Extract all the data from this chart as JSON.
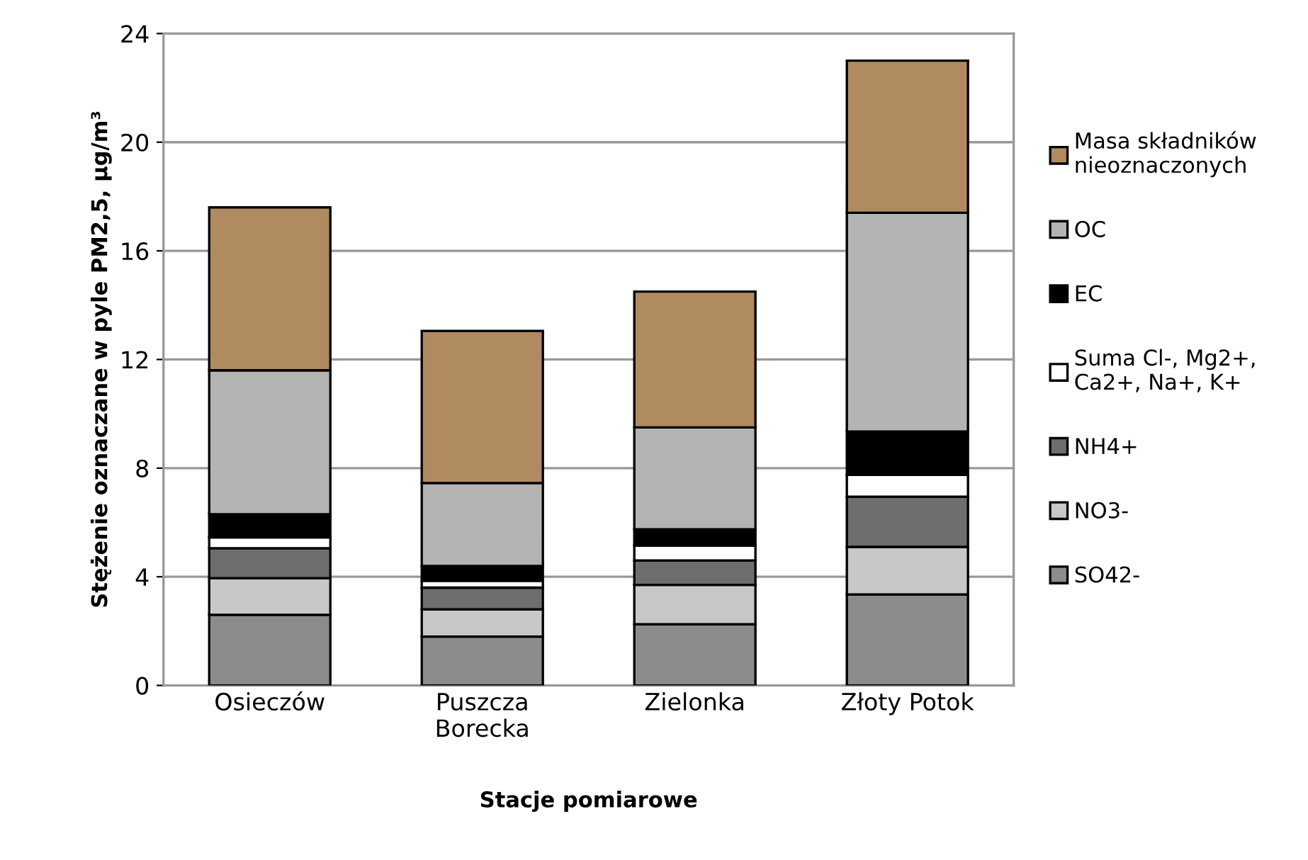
{
  "chart_data": {
    "type": "bar",
    "stacked": true,
    "xlabel": "Stacje pomiarowe",
    "ylabel": "Stężenie oznaczane w pyle PM2,5, µg/m³",
    "categories": [
      "Osieczów",
      "Puszcza\nBorecka",
      "Zielonka",
      "Złoty Potok"
    ],
    "series": [
      {
        "name": "SO42-",
        "color": "#8c8c8c",
        "values": [
          2.6,
          1.8,
          2.25,
          3.35
        ]
      },
      {
        "name": "NO3-",
        "color": "#c8c8c8",
        "values": [
          1.35,
          1.0,
          1.45,
          1.75
        ]
      },
      {
        "name": "NH4+",
        "color": "#6e6e6e",
        "values": [
          1.1,
          0.8,
          0.9,
          1.85
        ]
      },
      {
        "name": "Suma Cl-, Mg2+,\nCa2+, Na+, K+",
        "color": "#ffffff",
        "values": [
          0.4,
          0.25,
          0.55,
          0.8
        ]
      },
      {
        "name": "EC",
        "color": "#000000",
        "values": [
          0.85,
          0.55,
          0.6,
          1.6
        ]
      },
      {
        "name": "OC",
        "color": "#b4b4b4",
        "values": [
          5.3,
          3.05,
          3.75,
          8.05
        ]
      },
      {
        "name": "Masa składników\nnieoznaczonych",
        "color": "#b08a60",
        "values": [
          6.0,
          5.6,
          5.0,
          5.6
        ]
      }
    ],
    "ylim": [
      0,
      24
    ],
    "yticks": [
      0,
      4,
      8,
      12,
      16,
      20,
      24
    ],
    "grid": "y",
    "legend": "right"
  }
}
